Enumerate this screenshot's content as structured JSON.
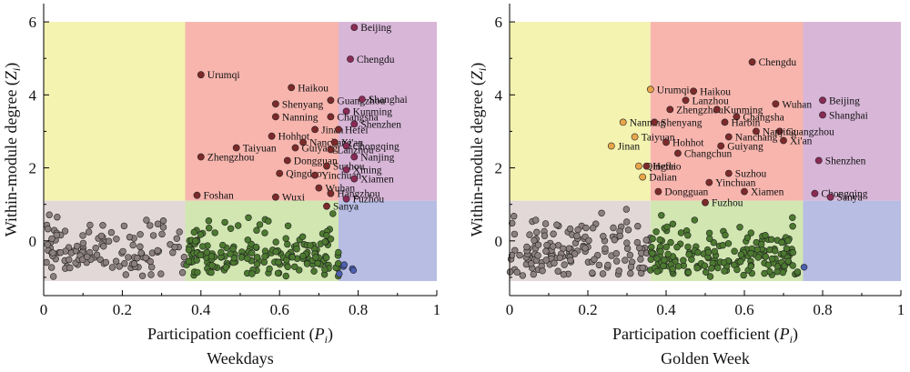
{
  "chart_data": [
    {
      "type": "scatter",
      "subtitle": "Weekdays",
      "xlabel_prefix": "Participation coefficient (",
      "xlabel_var": "P",
      "xlabel_sub": "i",
      "xlabel_suffix": ")",
      "ylabel_prefix": "Within-module degree (",
      "ylabel_var": "Z",
      "ylabel_sub": "i",
      "ylabel_suffix": ")",
      "xlim": [
        0,
        1
      ],
      "ylim": [
        -1.5,
        6.5
      ],
      "xticks": [
        "0",
        "0.2",
        "0.4",
        "0.6",
        "0.8",
        "1"
      ],
      "yticks": [
        "0",
        "2",
        "4",
        "6"
      ],
      "regions": [
        {
          "x": [
            0,
            0.36
          ],
          "y": [
            1.1,
            6
          ],
          "color": "#f4f3b0"
        },
        {
          "x": [
            0.36,
            0.75
          ],
          "y": [
            1.1,
            6
          ],
          "color": "#f7b5ae"
        },
        {
          "x": [
            0.75,
            1
          ],
          "y": [
            1.1,
            6
          ],
          "color": "#d8b6d8"
        },
        {
          "x": [
            0,
            0.36
          ],
          "y": [
            -1.1,
            1.1
          ],
          "color": "#e3d8d8"
        },
        {
          "x": [
            0.36,
            0.75
          ],
          "y": [
            -1.1,
            1.1
          ],
          "color": "#d2e6b2"
        },
        {
          "x": [
            0.75,
            1
          ],
          "y": [
            -1.1,
            1.1
          ],
          "color": "#b7bde3"
        }
      ],
      "labeled_points": [
        {
          "name": "Beijing",
          "x": 0.79,
          "y": 5.85,
          "color": "#8a2a55"
        },
        {
          "name": "Chengdu",
          "x": 0.78,
          "y": 4.98,
          "color": "#8a2a55"
        },
        {
          "name": "Urumqi",
          "x": 0.4,
          "y": 4.55,
          "color": "#7d2a2a"
        },
        {
          "name": "Haikou",
          "x": 0.63,
          "y": 4.2,
          "color": "#7d2a2a"
        },
        {
          "name": "Shenyang",
          "x": 0.59,
          "y": 3.75,
          "color": "#7d2a2a"
        },
        {
          "name": "Guangzhou",
          "x": 0.73,
          "y": 3.85,
          "color": "#7d2a2a"
        },
        {
          "name": "Shanghai",
          "x": 0.81,
          "y": 3.88,
          "color": "#8a2a55"
        },
        {
          "name": "Kunming",
          "x": 0.77,
          "y": 3.55,
          "color": "#8a2a55"
        },
        {
          "name": "Nanning",
          "x": 0.59,
          "y": 3.4,
          "color": "#7d2a2a"
        },
        {
          "name": "Changsha",
          "x": 0.73,
          "y": 3.4,
          "color": "#7d2a2a"
        },
        {
          "name": "Shenzhen",
          "x": 0.79,
          "y": 3.2,
          "color": "#8a2a55"
        },
        {
          "name": "Jinan",
          "x": 0.69,
          "y": 3.05,
          "color": "#7d2a2a"
        },
        {
          "name": "Hefei",
          "x": 0.75,
          "y": 3.05,
          "color": "#7d2a2a"
        },
        {
          "name": "Hohhot",
          "x": 0.58,
          "y": 2.87,
          "color": "#7d2a2a"
        },
        {
          "name": "Nanchang",
          "x": 0.66,
          "y": 2.7,
          "color": "#7d2a2a"
        },
        {
          "name": "Xi'an",
          "x": 0.74,
          "y": 2.7,
          "color": "#7d2a2a"
        },
        {
          "name": "Chongqing",
          "x": 0.77,
          "y": 2.6,
          "color": "#8a2a55"
        },
        {
          "name": "Taiyuan",
          "x": 0.49,
          "y": 2.55,
          "color": "#7d2a2a"
        },
        {
          "name": "Guiyang",
          "x": 0.64,
          "y": 2.55,
          "color": "#7d2a2a"
        },
        {
          "name": "Lanzhou",
          "x": 0.73,
          "y": 2.5,
          "color": "#7d2a2a"
        },
        {
          "name": "Nanjing",
          "x": 0.79,
          "y": 2.3,
          "color": "#8a2a55"
        },
        {
          "name": "Zhengzhou",
          "x": 0.4,
          "y": 2.3,
          "color": "#7d2a2a"
        },
        {
          "name": "Dongguan",
          "x": 0.62,
          "y": 2.2,
          "color": "#7d2a2a"
        },
        {
          "name": "Suzhou",
          "x": 0.72,
          "y": 2.05,
          "color": "#7d2a2a"
        },
        {
          "name": "Xining",
          "x": 0.77,
          "y": 1.95,
          "color": "#8a2a55"
        },
        {
          "name": "Qingdao",
          "x": 0.6,
          "y": 1.85,
          "color": "#7d2a2a"
        },
        {
          "name": "Yinchuan",
          "x": 0.69,
          "y": 1.8,
          "color": "#7d2a2a"
        },
        {
          "name": "Xiamen",
          "x": 0.79,
          "y": 1.7,
          "color": "#8a2a55"
        },
        {
          "name": "Foshan",
          "x": 0.39,
          "y": 1.25,
          "color": "#7d2a2a"
        },
        {
          "name": "Wuhan",
          "x": 0.7,
          "y": 1.45,
          "color": "#7d2a2a"
        },
        {
          "name": "Hangzhou",
          "x": 0.73,
          "y": 1.3,
          "color": "#7d2a2a"
        },
        {
          "name": "Wuxi",
          "x": 0.59,
          "y": 1.2,
          "color": "#7d2a2a"
        },
        {
          "name": "Fuzhou",
          "x": 0.77,
          "y": 1.15,
          "color": "#8a2a55"
        },
        {
          "name": "Sanya",
          "x": 0.72,
          "y": 0.95,
          "color": "#7d2a2a"
        }
      ],
      "unlabeled_groups": [
        {
          "x_range": [
            0,
            0.36
          ],
          "y_range": [
            -1.0,
            0.9
          ],
          "count": 120,
          "color": "#8c7f7f",
          "seed": 11
        },
        {
          "x_range": [
            0.36,
            0.75
          ],
          "y_range": [
            -1.0,
            0.85
          ],
          "count": 190,
          "color": "#4c7a30",
          "seed": 23
        },
        {
          "x_range": [
            0.75,
            0.8
          ],
          "y_range": [
            -1.0,
            0.2
          ],
          "count": 5,
          "color": "#4d5fb0",
          "seed": 37
        }
      ]
    },
    {
      "type": "scatter",
      "subtitle": "Golden Week",
      "xlabel_prefix": "Participation coefficient (",
      "xlabel_var": "P",
      "xlabel_sub": "i",
      "xlabel_suffix": ")",
      "ylabel_prefix": "Within-module degree (",
      "ylabel_var": "Z",
      "ylabel_sub": "i",
      "ylabel_suffix": ")",
      "xlim": [
        0,
        1
      ],
      "ylim": [
        -1.5,
        6.5
      ],
      "xticks": [
        "0",
        "0.2",
        "0.4",
        "0.6",
        "0.8",
        "1"
      ],
      "yticks": [
        "0",
        "2",
        "4",
        "6"
      ],
      "regions": [
        {
          "x": [
            0,
            0.36
          ],
          "y": [
            1.1,
            6
          ],
          "color": "#f4f3b0"
        },
        {
          "x": [
            0.36,
            0.75
          ],
          "y": [
            1.1,
            6
          ],
          "color": "#f7b5ae"
        },
        {
          "x": [
            0.75,
            1
          ],
          "y": [
            1.1,
            6
          ],
          "color": "#d8b6d8"
        },
        {
          "x": [
            0,
            0.36
          ],
          "y": [
            -1.1,
            1.1
          ],
          "color": "#e3d8d8"
        },
        {
          "x": [
            0.36,
            0.75
          ],
          "y": [
            -1.1,
            1.1
          ],
          "color": "#d2e6b2"
        },
        {
          "x": [
            0.75,
            1
          ],
          "y": [
            -1.1,
            1.1
          ],
          "color": "#b7bde3"
        }
      ],
      "labeled_points": [
        {
          "name": "Chengdu",
          "x": 0.62,
          "y": 4.9,
          "color": "#7d2a2a"
        },
        {
          "name": "Urumqi",
          "x": 0.36,
          "y": 4.15,
          "color": "#e8a64a"
        },
        {
          "name": "Haikou",
          "x": 0.47,
          "y": 4.1,
          "color": "#7d2a2a"
        },
        {
          "name": "Lanzhou",
          "x": 0.45,
          "y": 3.85,
          "color": "#7d2a2a"
        },
        {
          "name": "Wuhan",
          "x": 0.68,
          "y": 3.75,
          "color": "#7d2a2a"
        },
        {
          "name": "Beijing",
          "x": 0.8,
          "y": 3.85,
          "color": "#8a2a55"
        },
        {
          "name": "Zhengzhou",
          "x": 0.41,
          "y": 3.6,
          "color": "#7d2a2a"
        },
        {
          "name": "Kunming",
          "x": 0.53,
          "y": 3.6,
          "color": "#7d2a2a"
        },
        {
          "name": "Shanghai",
          "x": 0.8,
          "y": 3.45,
          "color": "#8a2a55"
        },
        {
          "name": "Changsha",
          "x": 0.58,
          "y": 3.4,
          "color": "#7d2a2a"
        },
        {
          "name": "Nanning",
          "x": 0.29,
          "y": 3.25,
          "color": "#e8a64a"
        },
        {
          "name": "Shenyang",
          "x": 0.37,
          "y": 3.25,
          "color": "#7d2a2a"
        },
        {
          "name": "Harbin",
          "x": 0.55,
          "y": 3.25,
          "color": "#7d2a2a"
        },
        {
          "name": "Guangzhou",
          "x": 0.69,
          "y": 3.0,
          "color": "#7d2a2a"
        },
        {
          "name": "Nanjing",
          "x": 0.63,
          "y": 3.0,
          "color": "#7d2a2a"
        },
        {
          "name": "Taiyuan",
          "x": 0.32,
          "y": 2.85,
          "color": "#e8a64a"
        },
        {
          "name": "Nanchang",
          "x": 0.56,
          "y": 2.85,
          "color": "#7d2a2a"
        },
        {
          "name": "Xi'an",
          "x": 0.7,
          "y": 2.75,
          "color": "#7d2a2a"
        },
        {
          "name": "Hohhot",
          "x": 0.4,
          "y": 2.7,
          "color": "#7d2a2a"
        },
        {
          "name": "Jinan",
          "x": 0.26,
          "y": 2.6,
          "color": "#e8a64a"
        },
        {
          "name": "Guiyang",
          "x": 0.54,
          "y": 2.6,
          "color": "#7d2a2a"
        },
        {
          "name": "Changchun",
          "x": 0.43,
          "y": 2.4,
          "color": "#7d2a2a"
        },
        {
          "name": "Shenzhen",
          "x": 0.79,
          "y": 2.2,
          "color": "#8a2a55"
        },
        {
          "name": "Qingdao",
          "x": 0.33,
          "y": 2.05,
          "color": "#e8a64a"
        },
        {
          "name": "Hefei",
          "x": 0.35,
          "y": 2.05,
          "color": "#7d2a2a"
        },
        {
          "name": "Suzhou",
          "x": 0.56,
          "y": 1.85,
          "color": "#7d2a2a"
        },
        {
          "name": "Dalian",
          "x": 0.34,
          "y": 1.75,
          "color": "#e8a64a"
        },
        {
          "name": "Yinchuan",
          "x": 0.51,
          "y": 1.6,
          "color": "#7d2a2a"
        },
        {
          "name": "Dongguan",
          "x": 0.38,
          "y": 1.35,
          "color": "#7d2a2a"
        },
        {
          "name": "Xiamen",
          "x": 0.6,
          "y": 1.35,
          "color": "#7d2a2a"
        },
        {
          "name": "Chongqing",
          "x": 0.78,
          "y": 1.3,
          "color": "#8a2a55"
        },
        {
          "name": "Sanya",
          "x": 0.82,
          "y": 1.2,
          "color": "#8a2a55"
        },
        {
          "name": "Fuzhou",
          "x": 0.5,
          "y": 1.05,
          "color": "#7d2a2a"
        }
      ],
      "unlabeled_groups": [
        {
          "x_range": [
            0,
            0.36
          ],
          "y_range": [
            -1.0,
            1.0
          ],
          "count": 150,
          "color": "#8c7f7f",
          "seed": 51
        },
        {
          "x_range": [
            0.36,
            0.74
          ],
          "y_range": [
            -1.0,
            0.8
          ],
          "count": 185,
          "color": "#4c7a30",
          "seed": 67
        },
        {
          "x_range": [
            0.75,
            0.76
          ],
          "y_range": [
            -0.75,
            -0.7
          ],
          "count": 1,
          "color": "#4d5fb0",
          "seed": 79
        }
      ]
    }
  ]
}
